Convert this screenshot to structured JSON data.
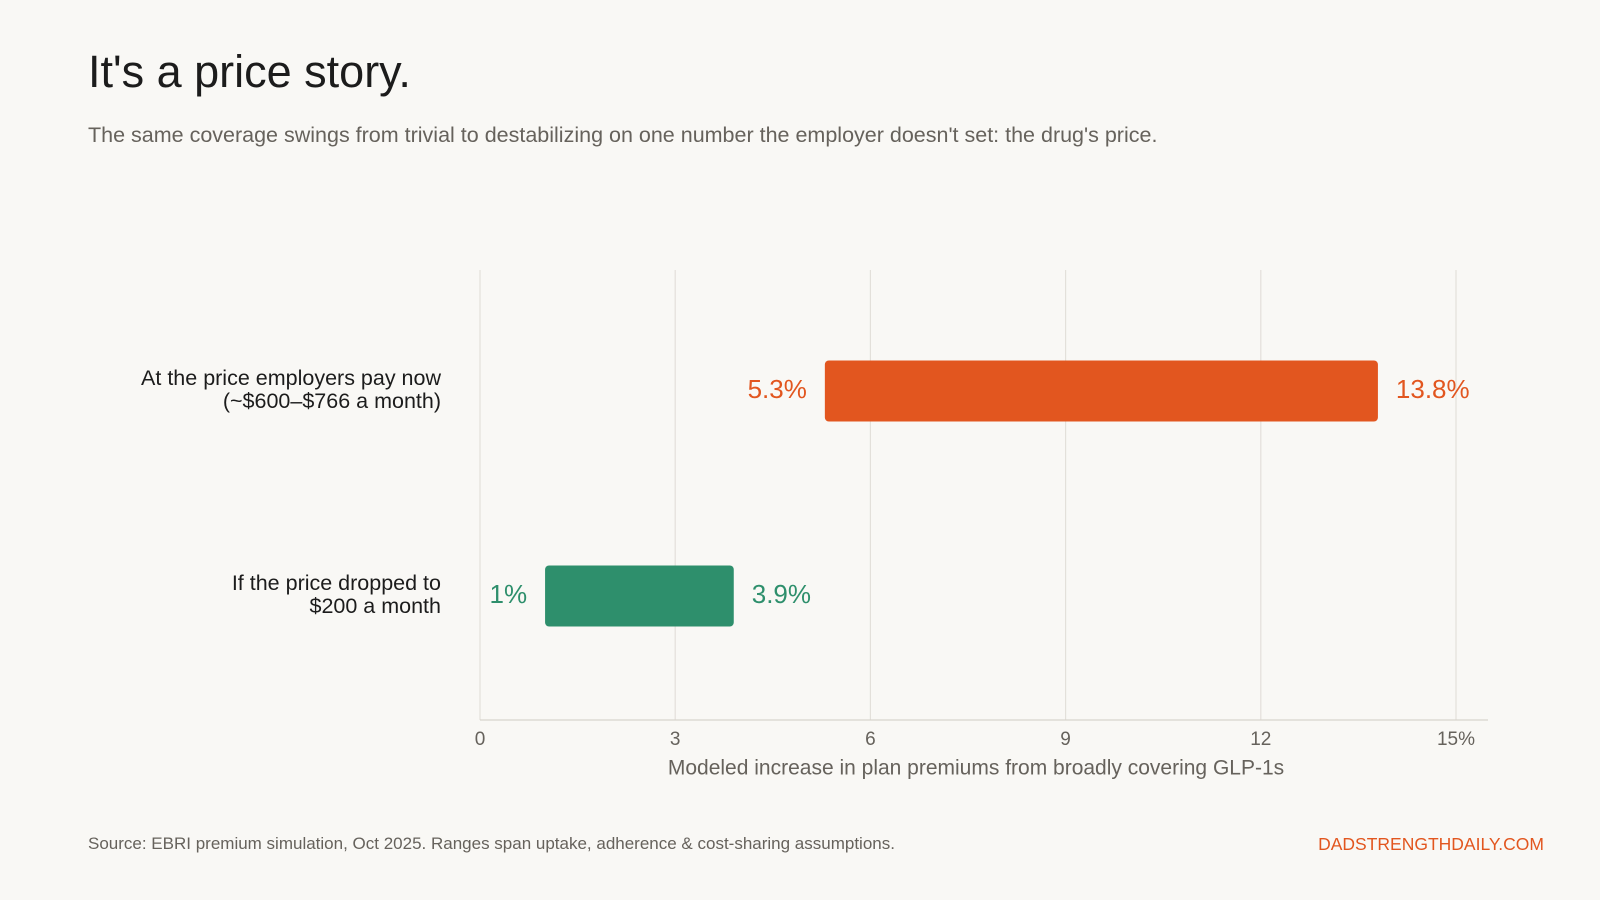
{
  "header": {
    "title": "It's a price story.",
    "subtitle": "The same coverage swings from trivial to destabilizing on one number the employer doesn't set: the drug's price."
  },
  "chart_data": {
    "type": "bar",
    "subtype": "range-bar",
    "orientation": "horizontal",
    "xlabel": "Modeled increase in plan premiums from broadly covering GLP-1s",
    "xlim": [
      0,
      15
    ],
    "xticks": [
      0,
      3,
      6,
      9,
      12,
      15
    ],
    "xtick_labels": [
      "0",
      "3",
      "6",
      "9",
      "12",
      "15%"
    ],
    "grid": true,
    "categories": [
      [
        "At the price employers pay now",
        "(~$600–$766 a month)"
      ],
      [
        "If the price dropped to",
        "$200 a month"
      ]
    ],
    "series": [
      {
        "low": 5.3,
        "high": 13.8,
        "low_label": "5.3%",
        "high_label": "13.8%",
        "color": "#e2561f"
      },
      {
        "low": 1,
        "high": 3.9,
        "low_label": "1%",
        "high_label": "3.9%",
        "color": "#2e8f6c"
      }
    ]
  },
  "footer": {
    "source": "Source: EBRI premium simulation, Oct 2025. Ranges span uptake, adherence & cost-sharing assumptions.",
    "brand": "DADSTRENGTHDAILY.COM"
  }
}
